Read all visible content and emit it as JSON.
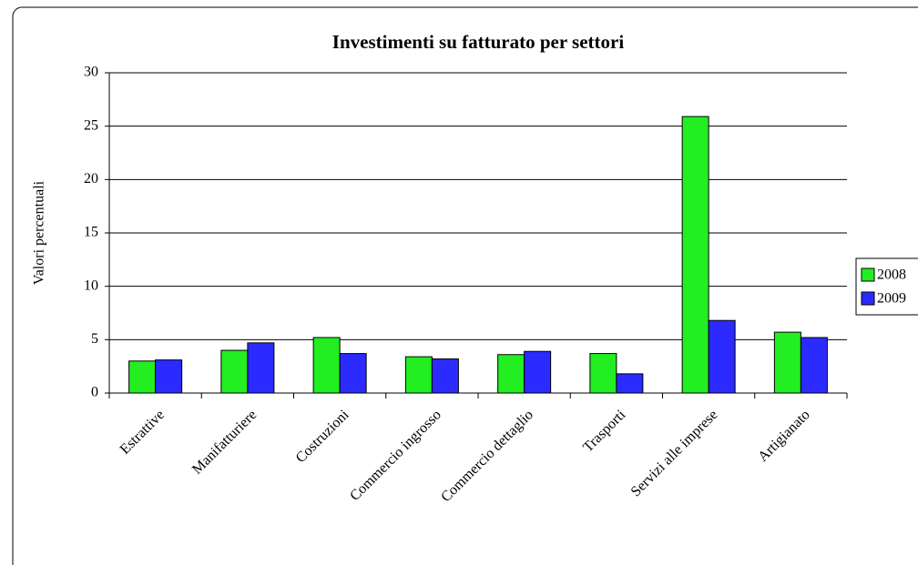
{
  "chart_data": {
    "type": "bar",
    "title": "Investimenti su fatturato per settori",
    "y_label": "Valori percentuali",
    "categories": [
      "Estrattive",
      "Manifatturiere",
      "Costruzioni",
      "Commercio ingrosso",
      "Commercio dettaglio",
      "Trasporti",
      "Servizi alle imprese",
      "Artigianato"
    ],
    "series": [
      {
        "name": "2008",
        "color": "#22ee22",
        "values": [
          3.0,
          4.0,
          5.2,
          3.4,
          3.6,
          3.7,
          25.9,
          5.7
        ]
      },
      {
        "name": "2009",
        "color": "#2b2bff",
        "values": [
          3.1,
          4.7,
          3.7,
          3.2,
          3.9,
          1.8,
          6.8,
          5.2
        ]
      }
    ],
    "ylim": [
      0,
      30
    ],
    "yticks": [
      0,
      5,
      10,
      15,
      20,
      25,
      30
    ],
    "grid": true,
    "legend": "right"
  }
}
